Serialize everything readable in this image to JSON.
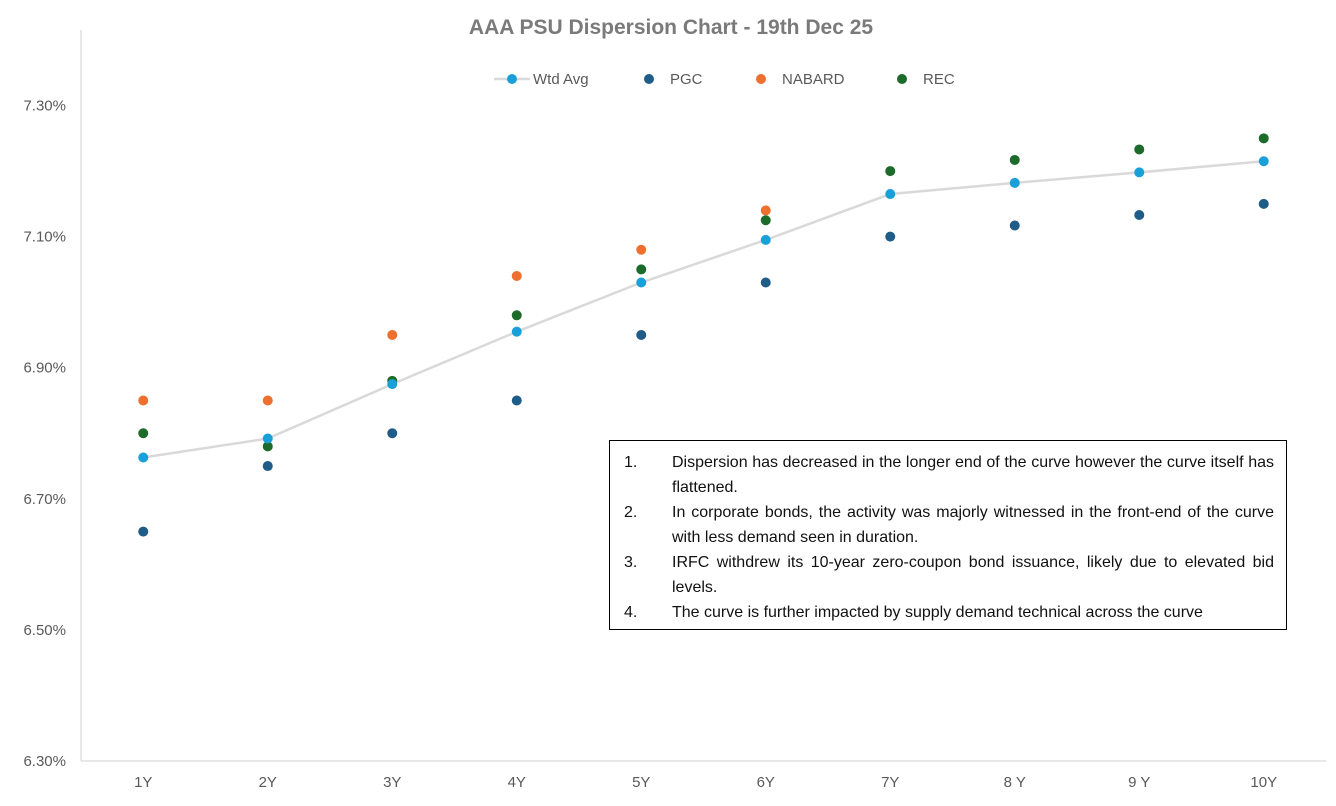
{
  "chart_data": {
    "type": "line+scatter",
    "title": "AAA PSU Dispersion Chart - 19th Dec 25",
    "categories": [
      "1Y",
      "2Y",
      "3Y",
      "4Y",
      "5Y",
      "6Y",
      "7Y",
      "8 Y",
      "9 Y",
      "10Y"
    ],
    "ylim": [
      6.3,
      7.4
    ],
    "yticks": [
      6.3,
      6.5,
      6.7,
      6.9,
      7.1,
      7.3
    ],
    "ytick_labels": [
      "6.30%",
      "6.50%",
      "6.70%",
      "6.90%",
      "7.10%",
      "7.30%"
    ],
    "legend_position": "top-center",
    "series": [
      {
        "name": "Wtd Avg",
        "style": "line",
        "color": "#1aa0d8",
        "line_color": "#d9d9d9",
        "values": [
          6.763,
          6.792,
          6.875,
          6.955,
          7.03,
          7.095,
          7.165,
          7.182,
          7.198,
          7.215
        ]
      },
      {
        "name": "PGC",
        "style": "scatter",
        "color": "#1f5c87",
        "values": [
          6.65,
          6.75,
          6.8,
          6.85,
          6.95,
          7.03,
          7.1,
          7.117,
          7.133,
          7.15
        ]
      },
      {
        "name": "NABARD",
        "style": "scatter",
        "color": "#ed7030",
        "values": [
          6.85,
          6.85,
          6.95,
          7.04,
          7.08,
          7.14,
          null,
          null,
          null,
          null
        ]
      },
      {
        "name": "REC",
        "style": "scatter",
        "color": "#1c6b2a",
        "values": [
          6.8,
          6.78,
          6.88,
          6.98,
          7.05,
          7.125,
          7.2,
          7.217,
          7.233,
          7.25
        ]
      }
    ]
  },
  "notes": [
    {
      "num": "1.",
      "text": "Dispersion has decreased in the longer end of the curve however the curve itself has flattened."
    },
    {
      "num": "2.",
      "text": "In corporate bonds, the activity was majorly witnessed in the front-end of the curve with less demand seen in duration."
    },
    {
      "num": "3.",
      "text": "IRFC withdrew its 10-year zero-coupon bond issuance, likely due to elevated bid levels."
    },
    {
      "num": "4.",
      "text": "The curve is further impacted by supply demand technical across the curve"
    }
  ]
}
